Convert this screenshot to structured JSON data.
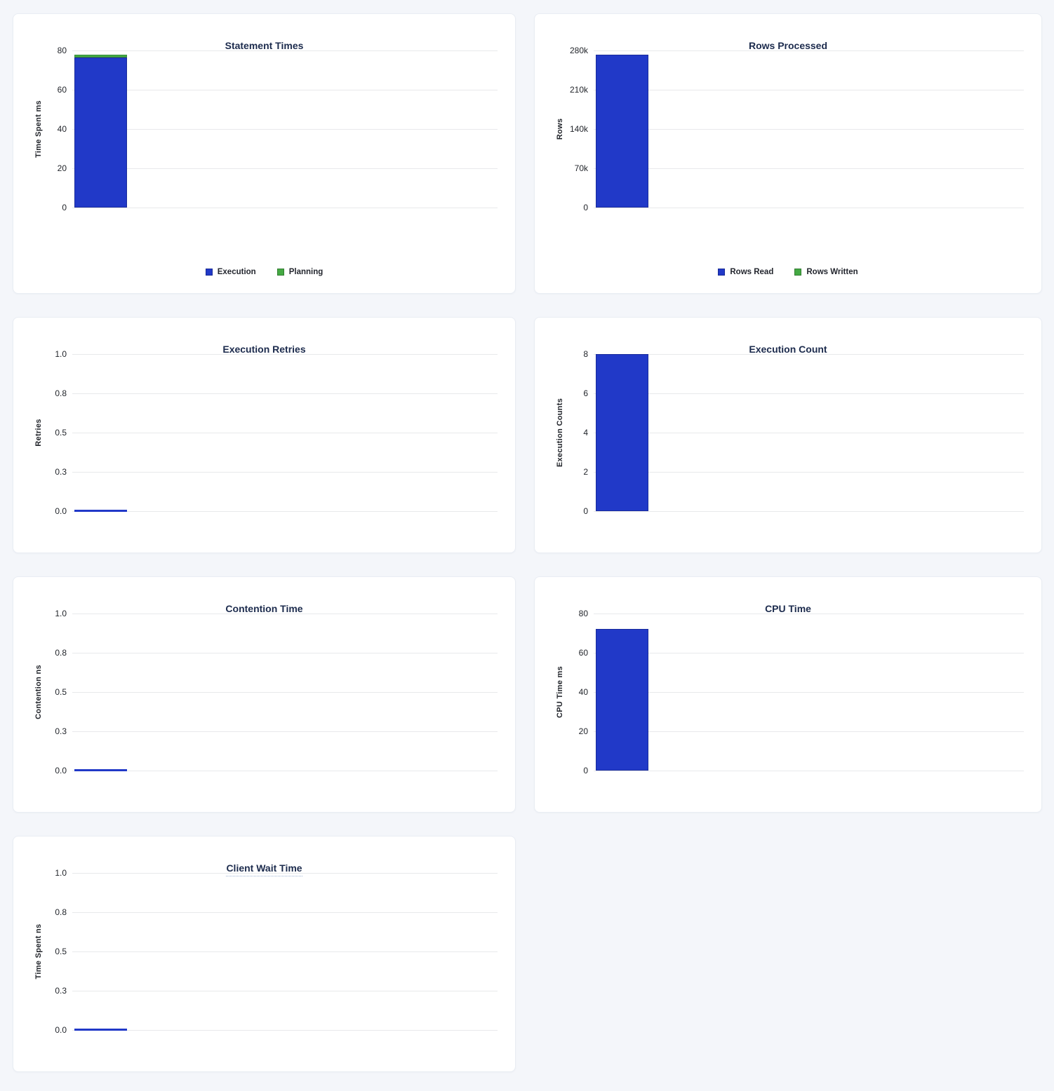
{
  "page": {
    "background_color": "#f4f6fa",
    "panel_color": "#ffffff"
  },
  "colors": {
    "bar_blue": "#2139c8",
    "bar_blue_border": "#1a2c9b",
    "bar_green": "#44a943",
    "bar_green_border": "#3a8f3c",
    "title_navy": "#1c2b4d",
    "gridline": "#e8e9eb",
    "tick_text": "#22252b"
  },
  "chart_data": [
    {
      "type": "bar",
      "title": "Statement Times",
      "ylabel": "Time Spent ms",
      "ylim": [
        0,
        80
      ],
      "yticks": [
        "80",
        "60",
        "40",
        "20",
        "0"
      ],
      "grid": true,
      "categories": [
        ""
      ],
      "series": [
        {
          "name": "Execution",
          "values": [
            76.5
          ],
          "color": "#2139c8",
          "border": "#1a2c9b"
        },
        {
          "name": "Planning",
          "values": [
            1.3
          ],
          "color": "#44a943",
          "border": "#3a8f3c"
        }
      ],
      "legend": [
        {
          "label": "Execution",
          "color": "#2139c8"
        },
        {
          "label": "Planning",
          "color": "#44a943"
        }
      ],
      "legend_position": "bottom",
      "title_tooltip_underline": false
    },
    {
      "type": "bar",
      "title": "Rows Processed",
      "ylabel": "Rows",
      "ylim": [
        0,
        280000
      ],
      "yticks": [
        "280k",
        "210k",
        "140k",
        "70k",
        "0"
      ],
      "grid": true,
      "categories": [
        ""
      ],
      "series": [
        {
          "name": "Rows Read",
          "values": [
            273000
          ],
          "color": "#2139c8",
          "border": "#1a2c9b"
        },
        {
          "name": "Rows Written",
          "values": [
            0
          ],
          "color": "#44a943",
          "border": "#3a8f3c"
        }
      ],
      "legend": [
        {
          "label": "Rows Read",
          "color": "#2139c8"
        },
        {
          "label": "Rows Written",
          "color": "#44a943"
        }
      ],
      "legend_position": "bottom",
      "title_tooltip_underline": false
    },
    {
      "type": "bar",
      "title": "Execution Retries",
      "ylabel": "Retries",
      "ylim": [
        0,
        1.0
      ],
      "yticks": [
        "1.0",
        "0.8",
        "0.5",
        "0.3",
        "0.0"
      ],
      "grid": true,
      "categories": [
        ""
      ],
      "series": [
        {
          "name": "Retries",
          "values": [
            0
          ],
          "color": "#2139c8",
          "border": "#1a2c9b"
        }
      ],
      "legend": null,
      "title_tooltip_underline": false
    },
    {
      "type": "bar",
      "title": "Execution Count",
      "ylabel": "Execution Counts",
      "ylim": [
        0,
        8
      ],
      "yticks": [
        "8",
        "6",
        "4",
        "2",
        "0"
      ],
      "grid": true,
      "categories": [
        ""
      ],
      "series": [
        {
          "name": "Execution Counts",
          "values": [
            8
          ],
          "color": "#2139c8",
          "border": "#1a2c9b"
        }
      ],
      "legend": null,
      "title_tooltip_underline": false
    },
    {
      "type": "bar",
      "title": "Contention Time",
      "ylabel": "Contention ns",
      "ylim": [
        0,
        1.0
      ],
      "yticks": [
        "1.0",
        "0.8",
        "0.5",
        "0.3",
        "0.0"
      ],
      "grid": true,
      "categories": [
        ""
      ],
      "series": [
        {
          "name": "Contention",
          "values": [
            0
          ],
          "color": "#2139c8",
          "border": "#1a2c9b"
        }
      ],
      "legend": null,
      "title_tooltip_underline": false
    },
    {
      "type": "bar",
      "title": "CPU Time",
      "ylabel": "CPU Time ms",
      "ylim": [
        0,
        80
      ],
      "yticks": [
        "80",
        "60",
        "40",
        "20",
        "0"
      ],
      "grid": true,
      "categories": [
        ""
      ],
      "series": [
        {
          "name": "CPU Time",
          "values": [
            72
          ],
          "color": "#2139c8",
          "border": "#1a2c9b"
        }
      ],
      "legend": null,
      "title_tooltip_underline": false
    },
    {
      "type": "bar",
      "title": "Client Wait Time",
      "ylabel": "Time Spent ns",
      "ylim": [
        0,
        1.0
      ],
      "yticks": [
        "1.0",
        "0.8",
        "0.5",
        "0.3",
        "0.0"
      ],
      "grid": true,
      "categories": [
        ""
      ],
      "series": [
        {
          "name": "Time Spent",
          "values": [
            0
          ],
          "color": "#2139c8",
          "border": "#1a2c9b"
        }
      ],
      "legend": null,
      "title_tooltip_underline": true
    }
  ]
}
